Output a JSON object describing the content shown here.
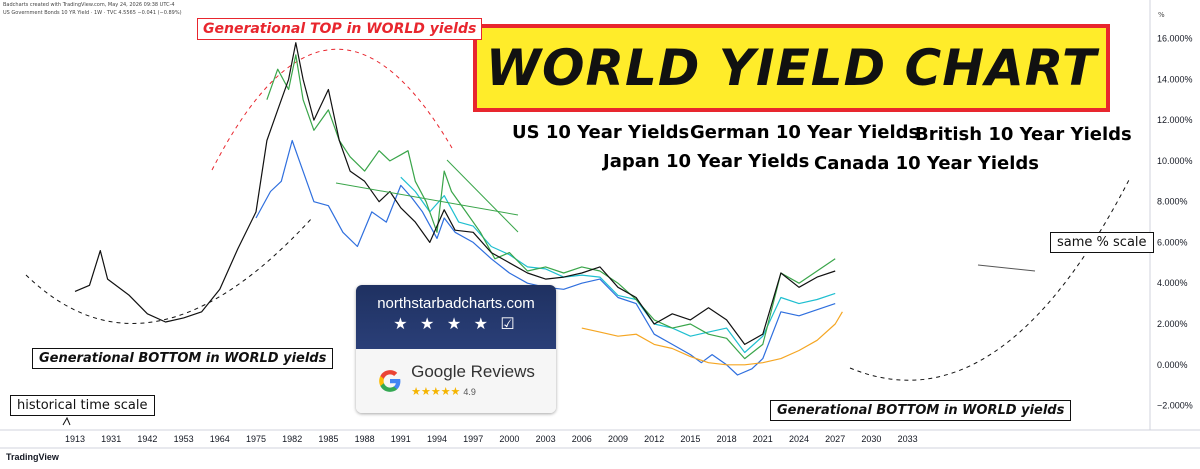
{
  "header": {
    "line1": "Badcharts created with TradingView.com, May 24, 2026 09:38 UTC-4",
    "line2": "US Government Bonds 10 YR Yield · 1W · TVC  4.5565  −0.041 (−0.89%)",
    "percent_symbol": "%"
  },
  "footer": {
    "logo_text": "TradingView"
  },
  "title": "WORLD YIELD CHART",
  "legend": [
    {
      "label": "US 10 Year Yields",
      "color": "#111111"
    },
    {
      "label": "German 10 Year Yields",
      "color": "#2f6fde"
    },
    {
      "label": "British 10 Year Yields",
      "color": "#3aa54a"
    },
    {
      "label": "Japan 10 Year Yields",
      "color": "#f5a623"
    },
    {
      "label": "Canada 10 Year Yields",
      "color": "#1fbfd0"
    }
  ],
  "annotations": {
    "top": "Generational TOP in WORLD yields",
    "bottom_left": "Generational BOTTOM in WORLD yields",
    "bottom_right": "Generational BOTTOM in WORLD yields",
    "scale_note": "same % scale",
    "time_note": "historical time scale"
  },
  "badge": {
    "site": "northstarbadcharts.com",
    "stars": "★ ★ ★ ★ ☑",
    "reviews_label": "Google Reviews",
    "review_stars": "★★★★★",
    "score": "4.9"
  },
  "chart_data": {
    "type": "line",
    "title": "WORLD YIELD CHART",
    "ylabel": "%",
    "ylim": [
      -3.2,
      17.5
    ],
    "y_ticks": [
      "16.000%",
      "14.000%",
      "12.000%",
      "10.000%",
      "8.000%",
      "6.000%",
      "4.000%",
      "2.000%",
      "0.000%",
      "−2.000%"
    ],
    "y_tick_values": [
      16,
      14,
      12,
      10,
      8,
      6,
      4,
      2,
      0,
      -2
    ],
    "x_ticks": [
      "1913",
      "1931",
      "1942",
      "1953",
      "1964",
      "1975",
      "1982",
      "1985",
      "1988",
      "1991",
      "1994",
      "1997",
      "2000",
      "2003",
      "2006",
      "2009",
      "2012",
      "2015",
      "2018",
      "2021",
      "2024",
      "2027",
      "2030",
      "2033"
    ],
    "grid": false,
    "series": [
      {
        "name": "US 10 Year Yields",
        "color": "#111111",
        "points": [
          [
            0,
            3.6
          ],
          [
            0.4,
            3.9
          ],
          [
            0.7,
            5.6
          ],
          [
            0.9,
            4.2
          ],
          [
            1.5,
            3.4
          ],
          [
            2.0,
            2.5
          ],
          [
            2.5,
            2.1
          ],
          [
            3.0,
            2.3
          ],
          [
            3.5,
            2.6
          ],
          [
            4.0,
            3.7
          ],
          [
            4.5,
            5.7
          ],
          [
            5.0,
            7.5
          ],
          [
            5.3,
            11.0
          ],
          [
            5.6,
            12.5
          ],
          [
            5.9,
            14.0
          ],
          [
            6.1,
            15.8
          ],
          [
            6.3,
            14.0
          ],
          [
            6.6,
            12.0
          ],
          [
            7.0,
            13.5
          ],
          [
            7.3,
            11.0
          ],
          [
            7.6,
            9.5
          ],
          [
            8.0,
            9.0
          ],
          [
            8.4,
            8.0
          ],
          [
            8.7,
            8.5
          ],
          [
            9.0,
            7.7
          ],
          [
            9.4,
            7.0
          ],
          [
            9.8,
            6.0
          ],
          [
            10.2,
            7.6
          ],
          [
            10.5,
            6.6
          ],
          [
            11.0,
            6.5
          ],
          [
            11.5,
            5.5
          ],
          [
            12.0,
            5.0
          ],
          [
            12.5,
            4.5
          ],
          [
            13.0,
            4.2
          ],
          [
            13.5,
            4.3
          ],
          [
            14.0,
            4.5
          ],
          [
            14.5,
            4.8
          ],
          [
            15.0,
            3.8
          ],
          [
            15.5,
            3.3
          ],
          [
            16.0,
            2.0
          ],
          [
            16.5,
            2.5
          ],
          [
            17.0,
            2.2
          ],
          [
            17.5,
            2.8
          ],
          [
            18.0,
            2.2
          ],
          [
            18.5,
            1.0
          ],
          [
            19.0,
            1.5
          ],
          [
            19.5,
            4.5
          ],
          [
            20.0,
            3.8
          ],
          [
            20.5,
            4.3
          ],
          [
            21.0,
            4.6
          ]
        ]
      },
      {
        "name": "German 10 Year Yields",
        "color": "#2f6fde",
        "points": [
          [
            5.0,
            7.2
          ],
          [
            5.4,
            8.5
          ],
          [
            5.7,
            9.0
          ],
          [
            6.0,
            11.0
          ],
          [
            6.2,
            10.0
          ],
          [
            6.6,
            8.0
          ],
          [
            7.0,
            7.8
          ],
          [
            7.4,
            6.5
          ],
          [
            7.8,
            5.8
          ],
          [
            8.2,
            7.5
          ],
          [
            8.6,
            7.0
          ],
          [
            9.0,
            8.8
          ],
          [
            9.3,
            8.2
          ],
          [
            9.6,
            7.5
          ],
          [
            10.0,
            6.2
          ],
          [
            10.2,
            7.2
          ],
          [
            10.5,
            6.5
          ],
          [
            11.0,
            6.0
          ],
          [
            11.5,
            5.2
          ],
          [
            12.0,
            4.5
          ],
          [
            12.5,
            4.0
          ],
          [
            13.0,
            3.8
          ],
          [
            13.5,
            3.7
          ],
          [
            14.0,
            4.0
          ],
          [
            14.5,
            4.2
          ],
          [
            15.0,
            3.3
          ],
          [
            15.5,
            3.0
          ],
          [
            16.0,
            1.5
          ],
          [
            16.5,
            1.0
          ],
          [
            17.0,
            0.5
          ],
          [
            17.3,
            0.1
          ],
          [
            17.6,
            0.5
          ],
          [
            18.0,
            0.0
          ],
          [
            18.3,
            -0.5
          ],
          [
            18.7,
            -0.2
          ],
          [
            19.0,
            0.3
          ],
          [
            19.5,
            2.6
          ],
          [
            20.0,
            2.4
          ],
          [
            20.5,
            2.7
          ],
          [
            21.0,
            3.0
          ]
        ]
      },
      {
        "name": "British 10 Year Yields",
        "color": "#3aa54a",
        "points": [
          [
            5.3,
            13.0
          ],
          [
            5.6,
            14.5
          ],
          [
            5.9,
            13.5
          ],
          [
            6.1,
            15.2
          ],
          [
            6.3,
            13.0
          ],
          [
            6.6,
            11.5
          ],
          [
            7.0,
            12.5
          ],
          [
            7.3,
            11.0
          ],
          [
            7.6,
            10.2
          ],
          [
            8.0,
            9.5
          ],
          [
            8.4,
            10.5
          ],
          [
            8.7,
            10.0
          ],
          [
            9.0,
            10.3
          ],
          [
            9.2,
            10.5
          ],
          [
            9.4,
            9.0
          ],
          [
            9.7,
            8.0
          ],
          [
            10.0,
            6.5
          ],
          [
            10.2,
            9.5
          ],
          [
            10.4,
            8.5
          ],
          [
            10.8,
            7.5
          ],
          [
            11.2,
            6.5
          ],
          [
            11.6,
            5.2
          ],
          [
            12.0,
            5.5
          ],
          [
            12.5,
            4.6
          ],
          [
            13.0,
            4.8
          ],
          [
            13.5,
            4.5
          ],
          [
            14.0,
            4.8
          ],
          [
            14.5,
            4.6
          ],
          [
            15.0,
            4.0
          ],
          [
            15.5,
            3.2
          ],
          [
            16.0,
            2.2
          ],
          [
            16.5,
            1.8
          ],
          [
            17.0,
            2.0
          ],
          [
            17.5,
            1.5
          ],
          [
            18.0,
            1.3
          ],
          [
            18.5,
            0.3
          ],
          [
            19.0,
            1.0
          ],
          [
            19.5,
            4.5
          ],
          [
            20.0,
            4.0
          ],
          [
            20.5,
            4.6
          ],
          [
            21.0,
            5.2
          ]
        ]
      },
      {
        "name": "Japan 10 Year Yields",
        "color": "#f5a623",
        "points": [
          [
            14.0,
            1.8
          ],
          [
            14.5,
            1.6
          ],
          [
            15.0,
            1.4
          ],
          [
            15.5,
            1.5
          ],
          [
            16.0,
            1.0
          ],
          [
            16.5,
            0.8
          ],
          [
            17.0,
            0.4
          ],
          [
            17.5,
            0.1
          ],
          [
            18.0,
            0.0
          ],
          [
            18.5,
            0.0
          ],
          [
            19.0,
            0.1
          ],
          [
            19.5,
            0.3
          ],
          [
            20.0,
            0.7
          ],
          [
            20.5,
            1.2
          ],
          [
            21.0,
            2.0
          ],
          [
            21.2,
            2.6
          ]
        ]
      },
      {
        "name": "Canada 10 Year Yields",
        "color": "#1fbfd0",
        "points": [
          [
            9.0,
            9.2
          ],
          [
            9.4,
            8.5
          ],
          [
            9.8,
            7.5
          ],
          [
            10.2,
            8.3
          ],
          [
            10.6,
            7.0
          ],
          [
            11.0,
            6.8
          ],
          [
            11.5,
            5.8
          ],
          [
            12.0,
            5.4
          ],
          [
            12.5,
            4.8
          ],
          [
            13.0,
            4.7
          ],
          [
            13.5,
            4.3
          ],
          [
            14.0,
            4.4
          ],
          [
            14.5,
            4.3
          ],
          [
            15.0,
            3.4
          ],
          [
            15.5,
            3.2
          ],
          [
            16.0,
            2.0
          ],
          [
            16.5,
            1.8
          ],
          [
            17.0,
            1.4
          ],
          [
            17.5,
            1.6
          ],
          [
            18.0,
            1.8
          ],
          [
            18.5,
            0.6
          ],
          [
            19.0,
            1.4
          ],
          [
            19.5,
            3.3
          ],
          [
            20.0,
            3.0
          ],
          [
            20.5,
            3.2
          ],
          [
            21.0,
            3.5
          ]
        ]
      }
    ]
  }
}
